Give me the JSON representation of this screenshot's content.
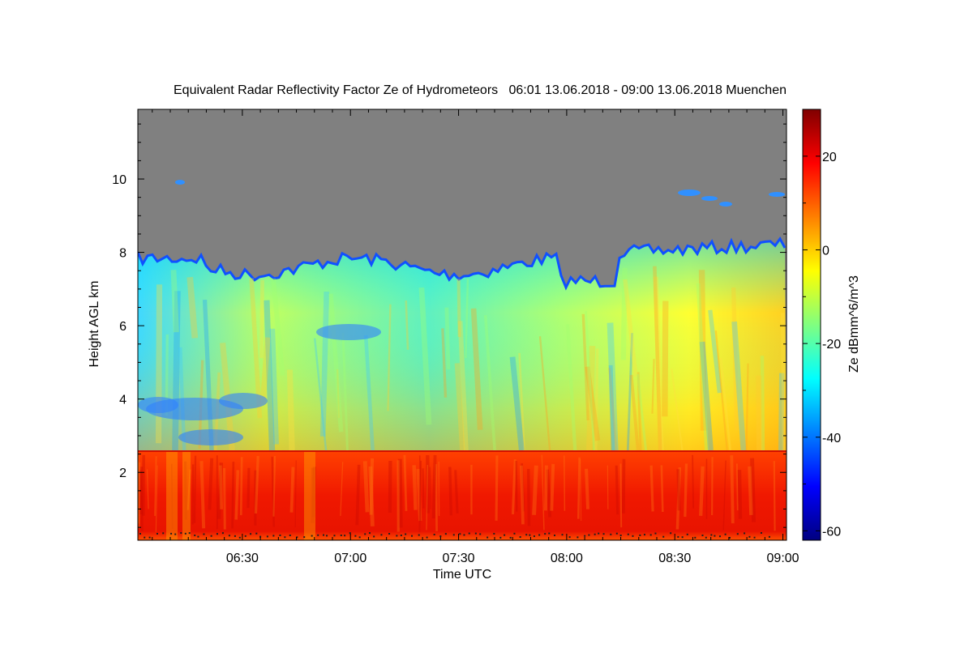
{
  "chart_data": {
    "type": "heatmap",
    "title": "Equivalent Radar Reflectivity Factor Ze of Hydrometeors   06:01 13.06.2018 - 09:00 13.06.2018 Muenchen",
    "xlabel": "Time UTC",
    "ylabel": "Height AGL km",
    "x_ticks": [
      "06:30",
      "07:00",
      "07:30",
      "08:00",
      "08:30",
      "09:00"
    ],
    "x_tick_minutes": [
      30,
      60,
      90,
      120,
      150,
      180
    ],
    "xlim_minutes": [
      1,
      181
    ],
    "y_ticks": [
      2,
      4,
      6,
      8,
      10
    ],
    "ylim": [
      0.15,
      11.9
    ],
    "colorbar": {
      "label": "Ze dBmm^6/m^3",
      "ticks": [
        20,
        0,
        -20,
        -40,
        -60
      ],
      "range": [
        -62,
        30
      ]
    },
    "colors": {
      "no_signal": "#808080",
      "colormap": [
        "#000080",
        "#0000ff",
        "#0080ff",
        "#00ffff",
        "#80ff80",
        "#ffff00",
        "#ff8000",
        "#ff0000",
        "#800000"
      ]
    },
    "regions_ze": {
      "cloud_top_km": 8.1,
      "melting_layer_km": 2.6,
      "rain_below_melting_layer_dbz": 22,
      "snow_mid_layer_dbz": -5,
      "cloud_top_edge_dbz": -40
    }
  }
}
